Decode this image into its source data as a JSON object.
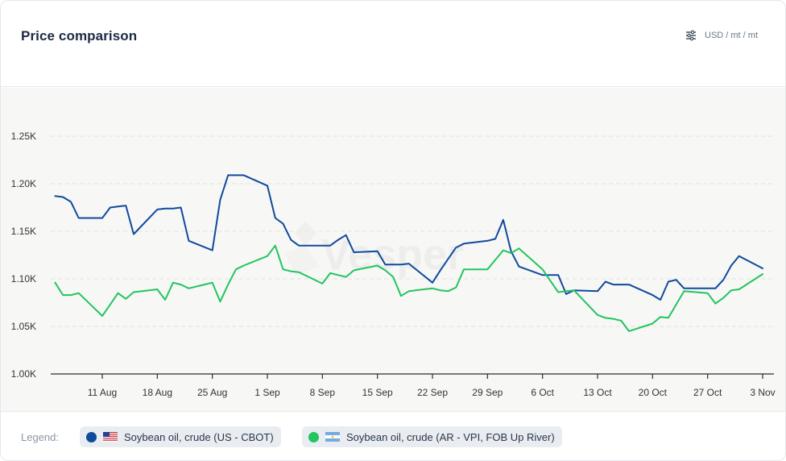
{
  "header": {
    "title": "Price comparison",
    "unit": "USD / mt / mt",
    "unit_icon": "sliders-icon"
  },
  "watermark": "Vesper",
  "legend": {
    "label": "Legend:",
    "items": [
      {
        "label": "Soybean oil, crude (US - CBOT)",
        "color": "#0f4a9c",
        "flag": "us-flag"
      },
      {
        "label": "Soybean oil, crude (AR - VPI, FOB Up River)",
        "color": "#22c55e",
        "flag": "ar-flag"
      }
    ]
  },
  "colors": {
    "us": "#0f4a9c",
    "ar": "#22c55e",
    "grid": "#e2e2e0",
    "axis": "#2c2c2c",
    "label": "#333333"
  },
  "chart_data": {
    "type": "line",
    "title": "Price comparison",
    "xlabel": "",
    "ylabel": "",
    "unit": "USD / mt / mt",
    "x_range": [
      "2025-08-05",
      "2025-11-04"
    ],
    "x_ticks": [
      {
        "date": "2025-08-11",
        "label": "11 Aug"
      },
      {
        "date": "2025-08-18",
        "label": "18 Aug"
      },
      {
        "date": "2025-08-25",
        "label": "25 Aug"
      },
      {
        "date": "2025-09-01",
        "label": "1 Sep"
      },
      {
        "date": "2025-09-08",
        "label": "8 Sep"
      },
      {
        "date": "2025-09-15",
        "label": "15 Sep"
      },
      {
        "date": "2025-09-22",
        "label": "22 Sep"
      },
      {
        "date": "2025-09-29",
        "label": "29 Sep"
      },
      {
        "date": "2025-10-06",
        "label": "6 Oct"
      },
      {
        "date": "2025-10-13",
        "label": "13 Oct"
      },
      {
        "date": "2025-10-20",
        "label": "20 Oct"
      },
      {
        "date": "2025-10-27",
        "label": "27 Oct"
      },
      {
        "date": "2025-11-03",
        "label": "3 Nov"
      }
    ],
    "y_ticks": [
      {
        "value": 1000,
        "label": "1.00K"
      },
      {
        "value": 1050,
        "label": "1.05K"
      },
      {
        "value": 1100,
        "label": "1.10K"
      },
      {
        "value": 1150,
        "label": "1.15K"
      },
      {
        "value": 1200,
        "label": "1.20K"
      },
      {
        "value": 1250,
        "label": "1.25K"
      }
    ],
    "ylim": [
      1000,
      1250
    ],
    "grid": true,
    "legend_position": "bottom",
    "series": [
      {
        "name": "Soybean oil, crude (US - CBOT)",
        "color": "#0f4a9c",
        "points": [
          [
            "2025-08-05",
            1187
          ],
          [
            "2025-08-06",
            1186
          ],
          [
            "2025-08-07",
            1181
          ],
          [
            "2025-08-08",
            1164
          ],
          [
            "2025-08-11",
            1164
          ],
          [
            "2025-08-12",
            1175
          ],
          [
            "2025-08-13",
            1176
          ],
          [
            "2025-08-14",
            1177
          ],
          [
            "2025-08-15",
            1147
          ],
          [
            "2025-08-18",
            1173
          ],
          [
            "2025-08-19",
            1174
          ],
          [
            "2025-08-20",
            1174
          ],
          [
            "2025-08-21",
            1175
          ],
          [
            "2025-08-22",
            1140
          ],
          [
            "2025-08-25",
            1130
          ],
          [
            "2025-08-26",
            1183
          ],
          [
            "2025-08-27",
            1209
          ],
          [
            "2025-08-28",
            1209
          ],
          [
            "2025-08-29",
            1209
          ],
          [
            "2025-09-01",
            1198
          ],
          [
            "2025-09-02",
            1164
          ],
          [
            "2025-09-03",
            1158
          ],
          [
            "2025-09-04",
            1141
          ],
          [
            "2025-09-05",
            1135
          ],
          [
            "2025-09-08",
            1135
          ],
          [
            "2025-09-09",
            1135
          ],
          [
            "2025-09-10",
            1141
          ],
          [
            "2025-09-11",
            1146
          ],
          [
            "2025-09-12",
            1128
          ],
          [
            "2025-09-15",
            1129
          ],
          [
            "2025-09-16",
            1115
          ],
          [
            "2025-09-17",
            1115
          ],
          [
            "2025-09-18",
            1115
          ],
          [
            "2025-09-19",
            1116
          ],
          [
            "2025-09-22",
            1096
          ],
          [
            "2025-09-23",
            1109
          ],
          [
            "2025-09-24",
            1121
          ],
          [
            "2025-09-25",
            1133
          ],
          [
            "2025-09-26",
            1137
          ],
          [
            "2025-09-29",
            1140
          ],
          [
            "2025-09-30",
            1142
          ],
          [
            "2025-10-01",
            1162
          ],
          [
            "2025-10-02",
            1129
          ],
          [
            "2025-10-03",
            1113
          ],
          [
            "2025-10-06",
            1104
          ],
          [
            "2025-10-07",
            1104
          ],
          [
            "2025-10-08",
            1104
          ],
          [
            "2025-10-09",
            1084
          ],
          [
            "2025-10-10",
            1088
          ],
          [
            "2025-10-13",
            1087
          ],
          [
            "2025-10-14",
            1097
          ],
          [
            "2025-10-15",
            1094
          ],
          [
            "2025-10-16",
            1094
          ],
          [
            "2025-10-17",
            1094
          ],
          [
            "2025-10-20",
            1083
          ],
          [
            "2025-10-21",
            1078
          ],
          [
            "2025-10-22",
            1097
          ],
          [
            "2025-10-23",
            1099
          ],
          [
            "2025-10-24",
            1090
          ],
          [
            "2025-10-27",
            1090
          ],
          [
            "2025-10-28",
            1090
          ],
          [
            "2025-10-29",
            1099
          ],
          [
            "2025-10-30",
            1114
          ],
          [
            "2025-10-31",
            1124
          ],
          [
            "2025-11-03",
            1111
          ]
        ]
      },
      {
        "name": "Soybean oil, crude (AR - VPI, FOB Up River)",
        "color": "#22c55e",
        "points": [
          [
            "2025-08-05",
            1096
          ],
          [
            "2025-08-06",
            1083
          ],
          [
            "2025-08-07",
            1083
          ],
          [
            "2025-08-08",
            1085
          ],
          [
            "2025-08-11",
            1061
          ],
          [
            "2025-08-12",
            1073
          ],
          [
            "2025-08-13",
            1085
          ],
          [
            "2025-08-14",
            1079
          ],
          [
            "2025-08-15",
            1086
          ],
          [
            "2025-08-18",
            1089
          ],
          [
            "2025-08-19",
            1078
          ],
          [
            "2025-08-20",
            1096
          ],
          [
            "2025-08-21",
            1094
          ],
          [
            "2025-08-22",
            1090
          ],
          [
            "2025-08-25",
            1096
          ],
          [
            "2025-08-26",
            1076
          ],
          [
            "2025-08-27",
            1094
          ],
          [
            "2025-08-28",
            1110
          ],
          [
            "2025-08-29",
            1114
          ],
          [
            "2025-09-01",
            1124
          ],
          [
            "2025-09-02",
            1135
          ],
          [
            "2025-09-03",
            1110
          ],
          [
            "2025-09-04",
            1108
          ],
          [
            "2025-09-05",
            1107
          ],
          [
            "2025-09-08",
            1095
          ],
          [
            "2025-09-09",
            1106
          ],
          [
            "2025-09-10",
            1104
          ],
          [
            "2025-09-11",
            1102
          ],
          [
            "2025-09-12",
            1109
          ],
          [
            "2025-09-15",
            1114
          ],
          [
            "2025-09-16",
            1109
          ],
          [
            "2025-09-17",
            1102
          ],
          [
            "2025-09-18",
            1082
          ],
          [
            "2025-09-19",
            1087
          ],
          [
            "2025-09-22",
            1090
          ],
          [
            "2025-09-23",
            1088
          ],
          [
            "2025-09-24",
            1087
          ],
          [
            "2025-09-25",
            1091
          ],
          [
            "2025-09-26",
            1110
          ],
          [
            "2025-09-29",
            1110
          ],
          [
            "2025-09-30",
            1120
          ],
          [
            "2025-10-01",
            1130
          ],
          [
            "2025-10-02",
            1127
          ],
          [
            "2025-10-03",
            1132
          ],
          [
            "2025-10-06",
            1110
          ],
          [
            "2025-10-07",
            1098
          ],
          [
            "2025-10-08",
            1086
          ],
          [
            "2025-10-09",
            1087
          ],
          [
            "2025-10-10",
            1088
          ],
          [
            "2025-10-13",
            1062
          ],
          [
            "2025-10-14",
            1059
          ],
          [
            "2025-10-15",
            1058
          ],
          [
            "2025-10-16",
            1056
          ],
          [
            "2025-10-17",
            1045
          ],
          [
            "2025-10-20",
            1053
          ],
          [
            "2025-10-21",
            1060
          ],
          [
            "2025-10-22",
            1059
          ],
          [
            "2025-10-23",
            1073
          ],
          [
            "2025-10-24",
            1087
          ],
          [
            "2025-10-27",
            1085
          ],
          [
            "2025-10-28",
            1074
          ],
          [
            "2025-10-29",
            1080
          ],
          [
            "2025-10-30",
            1088
          ],
          [
            "2025-10-31",
            1089
          ],
          [
            "2025-11-03",
            1105
          ]
        ]
      }
    ]
  }
}
